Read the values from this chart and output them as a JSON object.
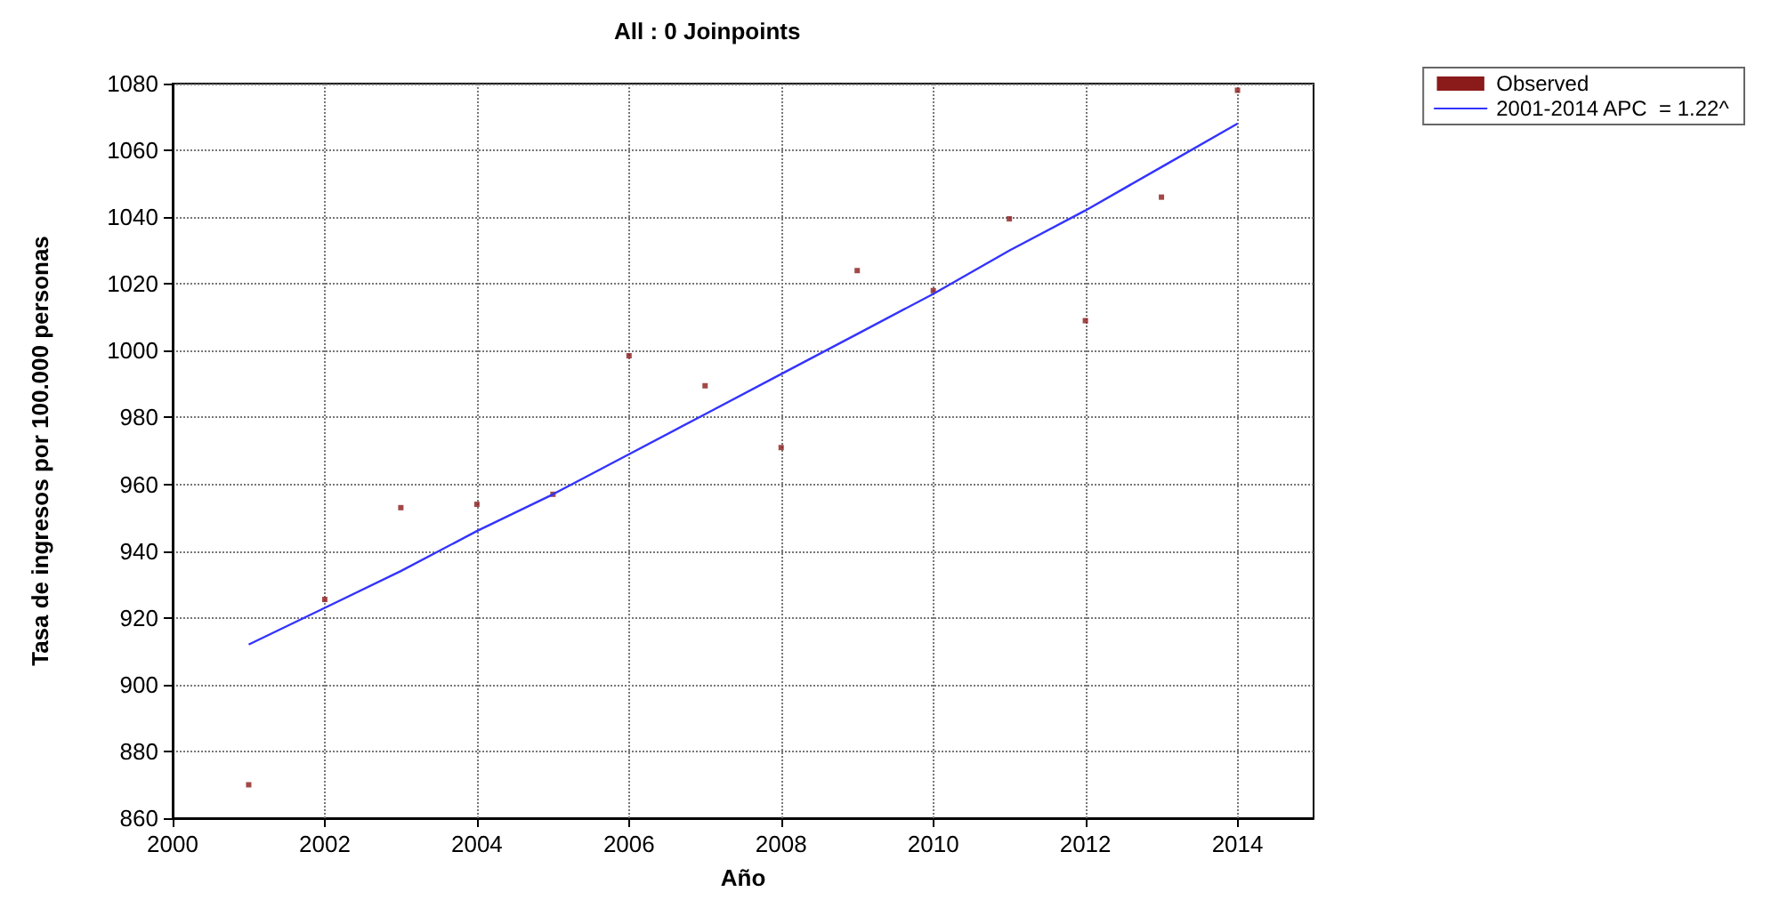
{
  "chart_data": {
    "type": "scatter",
    "title": "All : 0 Joinpoints",
    "xlabel": "Año",
    "ylabel": "Tasa de ingresos por 100.000 personas",
    "x": [
      2001,
      2002,
      2003,
      2004,
      2005,
      2006,
      2007,
      2008,
      2009,
      2010,
      2011,
      2012,
      2013,
      2014
    ],
    "series": [
      {
        "name": "Observed",
        "color": "#8b1a1a",
        "marker": "square",
        "values": [
          870,
          925.5,
          953,
          954,
          957,
          998.5,
          989.5,
          971,
          1024,
          1018,
          1039.5,
          1009,
          1046,
          1078
        ]
      },
      {
        "name": "2001-2014 APC  = 1.22^",
        "type": "line",
        "color": "#3333ff",
        "marker": "none",
        "values": [
          912,
          923,
          934,
          946,
          957,
          969,
          981,
          993,
          1005,
          1017,
          1030,
          1042,
          1055,
          1068
        ]
      }
    ],
    "xlim": [
      2000,
      2015
    ],
    "xticks": [
      2000,
      2002,
      2004,
      2006,
      2008,
      2010,
      2012,
      2014
    ],
    "ylim": [
      860,
      1080
    ],
    "yticks": [
      860,
      880,
      900,
      920,
      940,
      960,
      980,
      1000,
      1020,
      1040,
      1060,
      1080
    ],
    "grid": true,
    "legend": "top right"
  }
}
